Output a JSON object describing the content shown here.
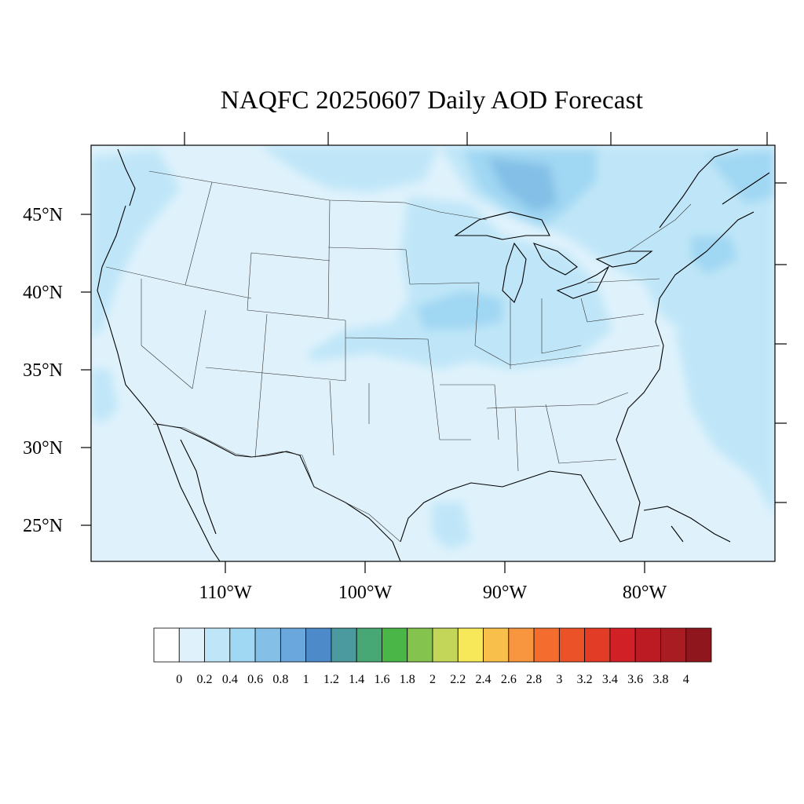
{
  "title": "NAQFC 20250607 Daily AOD Forecast",
  "map": {
    "projection": "lambert-conformal",
    "lat_labels": [
      "45°N",
      "40°N",
      "35°N",
      "30°N",
      "25°N"
    ],
    "lat_values": [
      45,
      40,
      35,
      30,
      25
    ],
    "lon_labels": [
      "110°W",
      "100°W",
      "90°W",
      "80°W"
    ],
    "lon_values": [
      -110,
      -100,
      -90,
      -80
    ],
    "region": "Contiguous United States",
    "field": "Aerosol Optical Depth",
    "dominant_range": [
      0.2,
      0.8
    ]
  },
  "colorbar": {
    "levels": [
      "0",
      "0.2",
      "0.4",
      "0.6",
      "0.8",
      "1",
      "1.2",
      "1.4",
      "1.6",
      "1.8",
      "2",
      "2.2",
      "2.4",
      "2.6",
      "2.8",
      "3",
      "3.2",
      "3.4",
      "3.6",
      "3.8",
      "4"
    ],
    "colors": [
      "#ffffff",
      "#dff2fc",
      "#bfe6f8",
      "#a0d7f3",
      "#83bfe6",
      "#6aa7dc",
      "#4c8ac9",
      "#4a9aa0",
      "#47a876",
      "#4bb648",
      "#85c34f",
      "#c4d65a",
      "#f7e85a",
      "#f8bf4a",
      "#f7963e",
      "#f46d2e",
      "#ec5228",
      "#e23b26",
      "#d22027",
      "#bc1b24",
      "#a81c22",
      "#8f161c"
    ]
  },
  "colors": {
    "ocean_base": "#d7eefb",
    "land_base": "#dff2fc",
    "aod_04": "#bfe6f8",
    "aod_06": "#a0d7f3",
    "aod_08": "#83bfe6",
    "boundary": "#333333",
    "frame": "#000000"
  }
}
